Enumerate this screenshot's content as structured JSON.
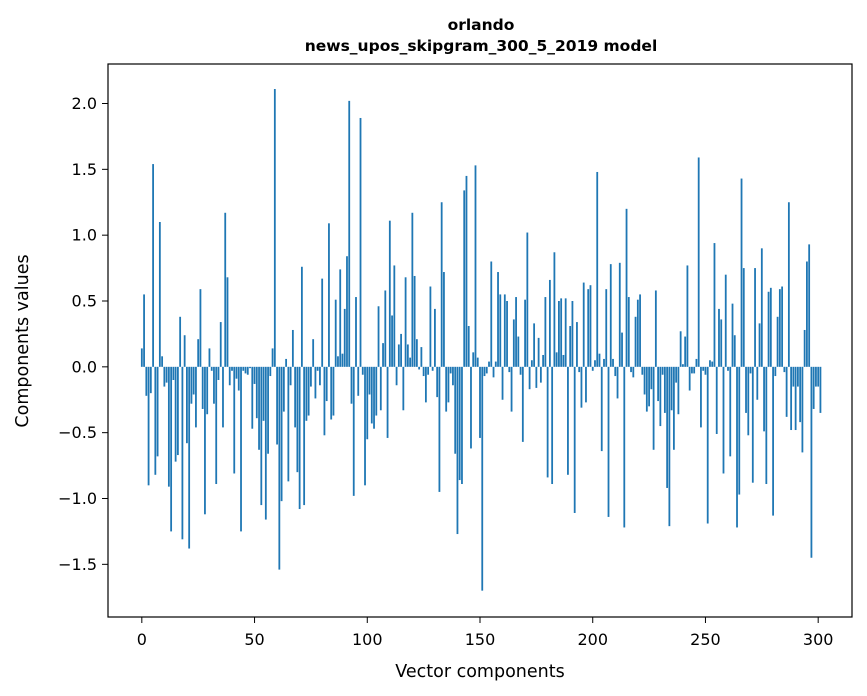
{
  "chart_data": {
    "type": "bar",
    "title_line1": "orlando",
    "title_line2": "news_upos_skipgram_300_5_2019 model",
    "xlabel": "Vector components",
    "ylabel": "Components values",
    "xlim": [
      -15,
      315
    ],
    "ylim": [
      -1.9,
      2.3
    ],
    "xticks": [
      0,
      50,
      100,
      150,
      200,
      250,
      300
    ],
    "yticks": [
      2.0,
      1.5,
      1.0,
      0.5,
      0.0,
      -0.5,
      -1.0,
      -1.5
    ],
    "ytick_labels": [
      "2.0",
      "1.5",
      "1.0",
      "0.5",
      "0.0",
      "−0.5",
      "−1.0",
      "−1.5"
    ],
    "bar_color": "#1f77b4",
    "values": [
      0.14,
      0.55,
      -0.22,
      -0.9,
      -0.2,
      1.54,
      -0.82,
      -0.68,
      1.1,
      0.08,
      -0.15,
      -0.12,
      -0.91,
      -1.25,
      -0.1,
      -0.72,
      -0.67,
      0.38,
      -1.31,
      0.24,
      -0.58,
      -1.38,
      -0.28,
      -0.21,
      -0.46,
      0.21,
      0.59,
      -0.32,
      -1.12,
      -0.36,
      0.14,
      -0.03,
      -0.28,
      -0.89,
      -0.1,
      0.34,
      -0.46,
      1.17,
      0.68,
      -0.14,
      -0.03,
      -0.81,
      -0.09,
      -0.18,
      -1.25,
      -0.03,
      -0.05,
      -0.06,
      -0.01,
      -0.47,
      -0.13,
      -0.39,
      -0.63,
      -1.05,
      -0.41,
      -1.16,
      -0.66,
      -0.07,
      0.14,
      2.11,
      -0.59,
      -1.54,
      -1.02,
      -0.34,
      0.06,
      -0.87,
      -0.14,
      0.28,
      -0.46,
      -0.8,
      -1.08,
      0.76,
      -1.05,
      -0.41,
      -0.37,
      -0.15,
      0.21,
      -0.24,
      -0.03,
      -0.14,
      0.67,
      -0.52,
      -0.26,
      1.09,
      -0.4,
      -0.37,
      0.51,
      0.08,
      0.74,
      0.1,
      0.44,
      0.84,
      2.02,
      -0.28,
      -0.98,
      0.53,
      -0.22,
      1.89,
      -0.06,
      -0.9,
      -0.55,
      -0.21,
      -0.43,
      -0.47,
      -0.37,
      0.46,
      -0.33,
      0.18,
      0.58,
      -0.54,
      1.11,
      0.39,
      0.77,
      -0.14,
      0.17,
      0.25,
      -0.33,
      0.68,
      0.17,
      0.07,
      1.17,
      0.69,
      0.21,
      -0.02,
      0.15,
      -0.07,
      -0.27,
      -0.06,
      0.61,
      -0.03,
      0.44,
      -0.23,
      -0.95,
      1.25,
      0.72,
      -0.34,
      -0.27,
      -0.05,
      -0.14,
      -0.66,
      -1.27,
      -0.86,
      -0.89,
      1.34,
      1.45,
      0.31,
      -0.62,
      0.11,
      1.53,
      0.07,
      -0.54,
      -1.7,
      -0.07,
      -0.05,
      0.04,
      0.8,
      -0.08,
      0.04,
      0.72,
      0.55,
      -0.25,
      0.55,
      0.5,
      -0.04,
      -0.34,
      0.36,
      0.53,
      0.23,
      -0.06,
      -0.57,
      0.51,
      1.02,
      -0.17,
      0.05,
      0.33,
      -0.16,
      0.22,
      -0.12,
      0.09,
      0.53,
      -0.84,
      0.66,
      -0.89,
      0.87,
      0.11,
      0.5,
      0.52,
      0.09,
      0.52,
      -0.82,
      0.31,
      0.5,
      -1.11,
      0.34,
      -0.04,
      -0.31,
      0.64,
      -0.27,
      0.59,
      0.62,
      -0.03,
      0.05,
      1.48,
      0.1,
      -0.64,
      0.06,
      0.59,
      -1.14,
      0.78,
      0.06,
      -0.07,
      -0.24,
      0.79,
      0.26,
      -1.22,
      1.2,
      0.53,
      -0.04,
      -0.08,
      0.38,
      0.51,
      0.55,
      -0.06,
      -0.21,
      -0.34,
      -0.3,
      -0.17,
      -0.63,
      0.58,
      -0.26,
      -0.45,
      -0.06,
      -0.35,
      -0.92,
      -1.21,
      -0.33,
      -0.63,
      -0.12,
      -0.36,
      0.27,
      0.02,
      0.23,
      0.77,
      -0.18,
      -0.05,
      -0.05,
      0.06,
      1.59,
      -0.46,
      -0.03,
      -0.06,
      -1.19,
      0.05,
      0.04,
      0.94,
      -0.51,
      0.44,
      0.36,
      -0.81,
      0.7,
      -0.03,
      -0.68,
      0.48,
      0.24,
      -1.22,
      -0.97,
      1.43,
      0.75,
      -0.35,
      -0.52,
      -0.05,
      -0.88,
      0.75,
      -0.25,
      0.33,
      0.9,
      -0.49,
      -0.89,
      0.57,
      0.6,
      -1.13,
      -0.07,
      0.38,
      0.59,
      0.61,
      -0.04,
      -0.38,
      1.25,
      -0.48,
      -0.15,
      -0.48,
      -0.15,
      -0.42,
      -0.65,
      0.28,
      0.8,
      0.93,
      -1.45,
      -0.32,
      -0.15,
      -0.15,
      -0.35
    ]
  }
}
